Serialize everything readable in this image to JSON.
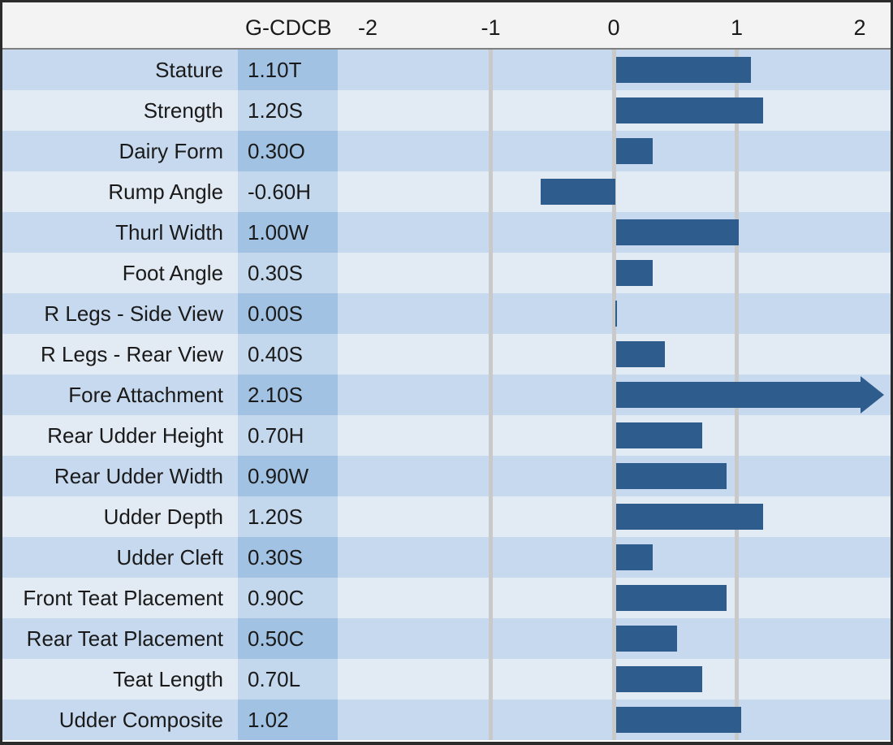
{
  "chart_data": {
    "type": "bar",
    "orientation": "horizontal",
    "value_column_header": "G-CDCB",
    "xlim": [
      -2,
      2
    ],
    "x_tick_labels": [
      "-2",
      "-1",
      "0",
      "1",
      "2"
    ],
    "x_tick_values": [
      -2,
      -1,
      0,
      1,
      2
    ],
    "gridlines_at": [
      -1,
      0,
      1
    ],
    "grid": "vertical-only",
    "rows": [
      {
        "trait": "Stature",
        "display_value": "1.10T",
        "value": 1.1
      },
      {
        "trait": "Strength",
        "display_value": "1.20S",
        "value": 1.2
      },
      {
        "trait": "Dairy Form",
        "display_value": "0.30O",
        "value": 0.3
      },
      {
        "trait": "Rump Angle",
        "display_value": "-0.60H",
        "value": -0.6
      },
      {
        "trait": "Thurl Width",
        "display_value": "1.00W",
        "value": 1.0
      },
      {
        "trait": "Foot Angle",
        "display_value": "0.30S",
        "value": 0.3
      },
      {
        "trait": "R Legs - Side View",
        "display_value": "0.00S",
        "value": 0.0
      },
      {
        "trait": "R Legs - Rear View",
        "display_value": "0.40S",
        "value": 0.4
      },
      {
        "trait": "Fore Attachment",
        "display_value": "2.10S",
        "value": 2.1,
        "overflow_arrow": true
      },
      {
        "trait": "Rear Udder Height",
        "display_value": "0.70H",
        "value": 0.7
      },
      {
        "trait": "Rear Udder Width",
        "display_value": "0.90W",
        "value": 0.9
      },
      {
        "trait": "Udder Depth",
        "display_value": "1.20S",
        "value": 1.2
      },
      {
        "trait": "Udder Cleft",
        "display_value": "0.30S",
        "value": 0.3
      },
      {
        "trait": "Front Teat Placement",
        "display_value": "0.90C",
        "value": 0.9
      },
      {
        "trait": "Rear Teat Placement",
        "display_value": "0.50C",
        "value": 0.5
      },
      {
        "trait": "Teat Length",
        "display_value": "0.70L",
        "value": 0.7
      },
      {
        "trait": "Udder Composite",
        "display_value": "1.02",
        "value": 1.02
      }
    ],
    "colors": {
      "bar": "#2e5c8c",
      "row_stripe_dark": "#c7d9ee",
      "row_stripe_light": "#e2eaf4",
      "value_cell_dark": "#a1c2e2",
      "value_cell_light": "#c3d7ed",
      "header_background": "#f3f3f3",
      "header_rule": "#7f7f7f",
      "gridline": "#c9c9c9",
      "outer_border": "#2b2b2b",
      "text": "#1a1a1a"
    }
  }
}
